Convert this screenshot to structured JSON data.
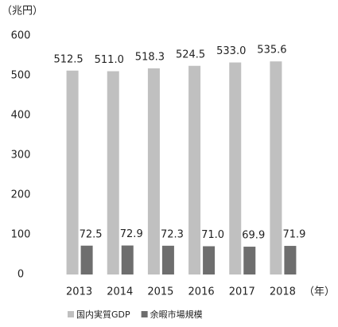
{
  "chart_data": {
    "type": "bar",
    "y_label": "（兆円）",
    "x_label": "（年）",
    "categories": [
      "2013",
      "2014",
      "2015",
      "2016",
      "2017",
      "2018"
    ],
    "series": [
      {
        "name": "国内実質GDP",
        "color": "#c0c0c0",
        "values": [
          512.5,
          511.0,
          518.3,
          524.5,
          533.0,
          535.6
        ],
        "value_labels": [
          "512.5",
          "511.0",
          "518.3",
          "524.5",
          "533.0",
          "535.6"
        ]
      },
      {
        "name": "余暇市場規模",
        "color": "#6e6e6e",
        "values": [
          72.5,
          72.9,
          72.3,
          71.0,
          69.9,
          71.9
        ],
        "value_labels": [
          "72.5",
          "72.9",
          "72.3",
          "71.0",
          "69.9",
          "71.9"
        ]
      }
    ],
    "ylim": [
      0,
      600
    ],
    "yticks": [
      0,
      100,
      200,
      300,
      400,
      500,
      600
    ],
    "grid": false,
    "legend": "bottom"
  }
}
